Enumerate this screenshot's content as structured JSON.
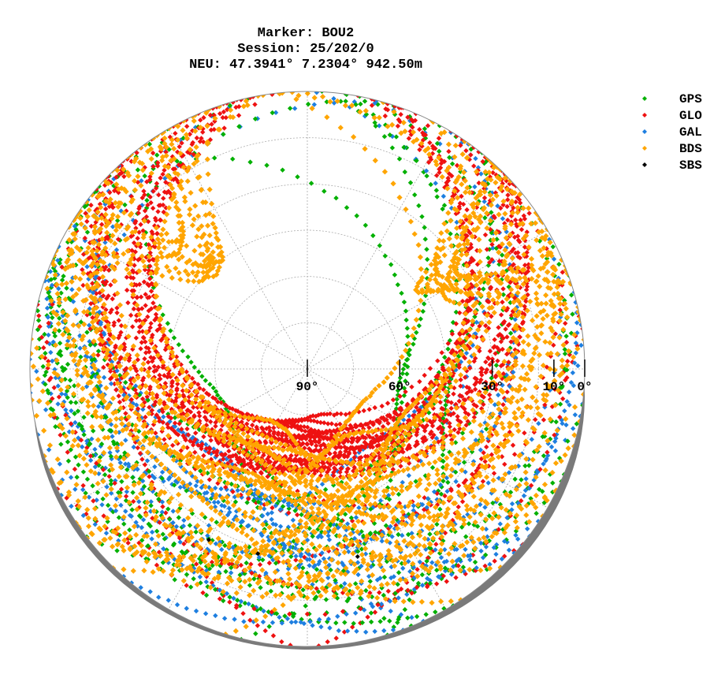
{
  "chart_data": {
    "type": "scatter",
    "subtype": "polar-skyplot",
    "title_lines": [
      "Marker: BOU2",
      "Session: 25/202/0",
      "NEU: 47.3941° 7.2304° 942.50m"
    ],
    "elevation_ticks": [
      {
        "value": 90,
        "label": "90°"
      },
      {
        "value": 60,
        "label": "60°"
      },
      {
        "value": 30,
        "label": "30°"
      },
      {
        "value": 10,
        "label": "10°"
      },
      {
        "value": 0,
        "label": "0°"
      }
    ],
    "elevation_range": [
      0,
      90
    ],
    "grid": true,
    "legend_position": "top-right",
    "series": [
      {
        "name": "GPS",
        "color": "#00b000"
      },
      {
        "name": "GLO",
        "color": "#ee1111"
      },
      {
        "name": "GAL",
        "color": "#1e7fe0"
      },
      {
        "name": "BDS",
        "color": "#ffa500"
      },
      {
        "name": "SBS",
        "color": "#000000"
      }
    ]
  }
}
